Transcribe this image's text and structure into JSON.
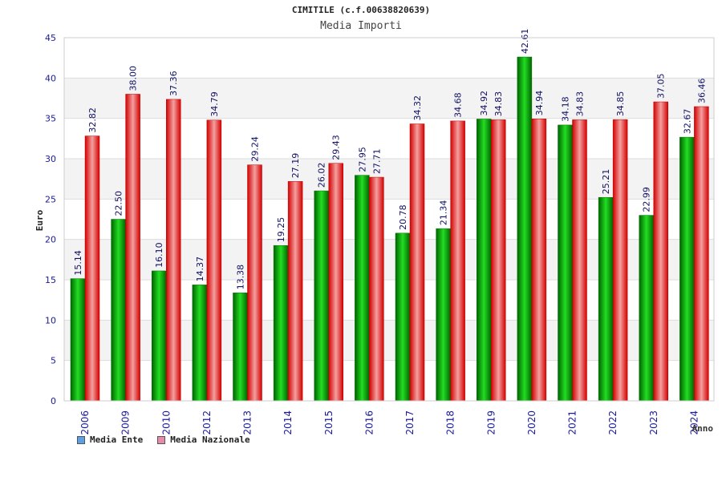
{
  "chart_data": {
    "type": "bar",
    "title": "CIMITILE (c.f.00638820639)",
    "subtitle": "Media Importi",
    "xlabel": "Anno",
    "ylabel": "Euro",
    "ylim": [
      0,
      45
    ],
    "yticks": [
      0,
      5,
      10,
      15,
      20,
      25,
      30,
      35,
      40,
      45
    ],
    "categories": [
      "2006",
      "2009",
      "2010",
      "2012",
      "2013",
      "2014",
      "2015",
      "2016",
      "2017",
      "2018",
      "2019",
      "2020",
      "2021",
      "2022",
      "2023",
      "2024"
    ],
    "series": [
      {
        "name": "Media Ente",
        "color": "#00b000",
        "values": [
          15.14,
          22.5,
          16.1,
          14.37,
          13.38,
          19.25,
          26.02,
          27.95,
          20.78,
          21.34,
          34.92,
          42.61,
          34.18,
          25.21,
          22.99,
          32.67
        ]
      },
      {
        "name": "Media Nazionale",
        "color": "#e03030",
        "values": [
          32.82,
          38.0,
          37.36,
          34.79,
          29.24,
          27.19,
          29.43,
          27.71,
          34.32,
          34.68,
          34.83,
          34.94,
          34.83,
          34.85,
          37.05,
          36.46
        ]
      }
    ],
    "legend": [
      {
        "label": "Media Ente",
        "swatch": "#5aa0e6"
      },
      {
        "label": "Media Nazionale",
        "swatch": "#e88aa8"
      }
    ],
    "grid": true
  }
}
